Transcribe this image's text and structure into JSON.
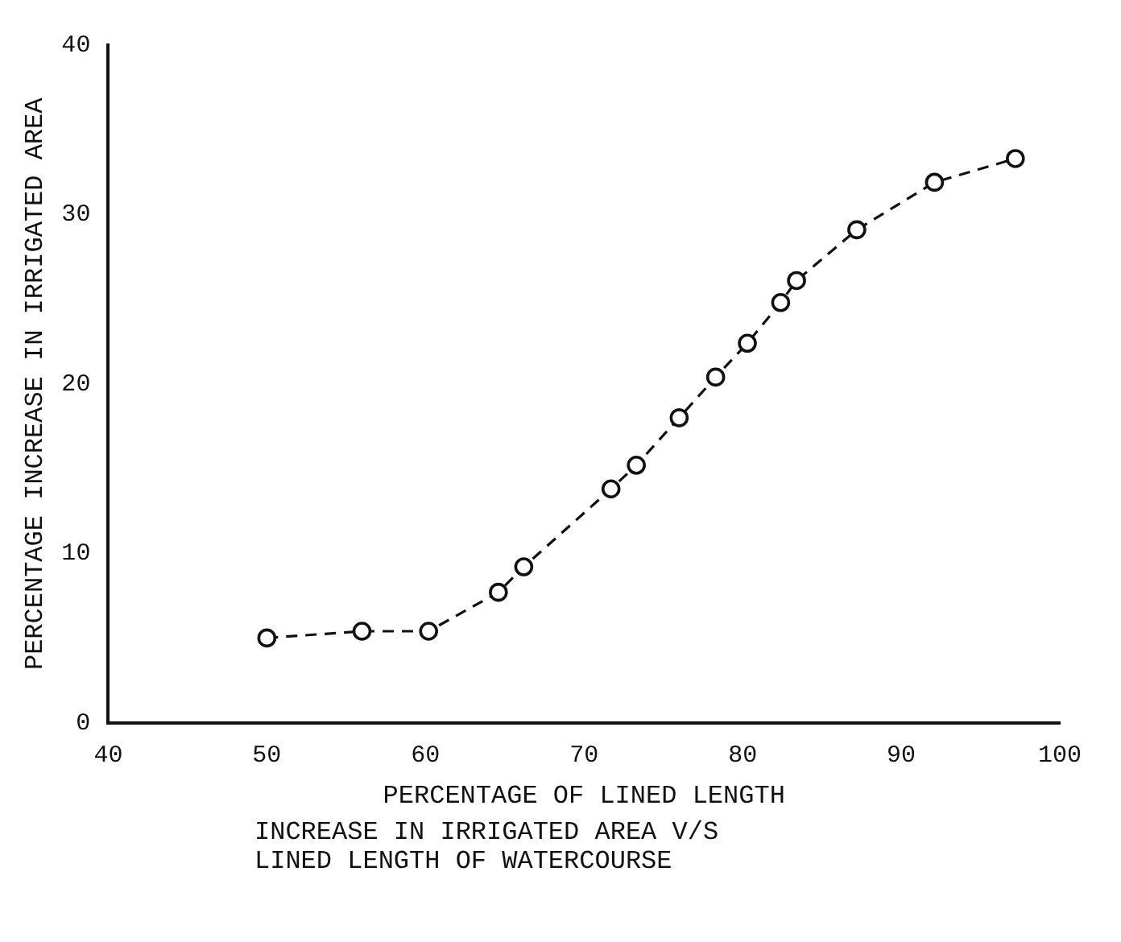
{
  "chart_data": {
    "type": "line",
    "xlabel": "PERCENTAGE OF LINED LENGTH",
    "ylabel": "PERCENTAGE INCREASE IN IRRIGATED AREA",
    "annotations": [
      "INCREASE IN IRRIGATED AREA V/S\nLINED LENGTH OF WATERCOURSE"
    ],
    "x": [
      50,
      56,
      60.2,
      64.6,
      66.2,
      71.7,
      73.3,
      76,
      78.3,
      80.3,
      82.4,
      83.4,
      87.2,
      92.1,
      97.2
    ],
    "series": [
      {
        "color": "#111111",
        "values": [
          5,
          5.4,
          5.4,
          7.7,
          9.2,
          13.8,
          15.2,
          18,
          20.4,
          22.4,
          24.8,
          26.1,
          29.1,
          31.9,
          33.3
        ]
      }
    ],
    "xlim": [
      40,
      100
    ],
    "xticks": [
      40,
      50,
      60,
      70,
      80,
      90,
      100
    ],
    "ylim": [
      0,
      40
    ],
    "yticks": [
      0,
      10,
      20,
      30,
      40
    ],
    "marker": "circle",
    "line_style": "dashed",
    "grid": false,
    "legend": false
  }
}
